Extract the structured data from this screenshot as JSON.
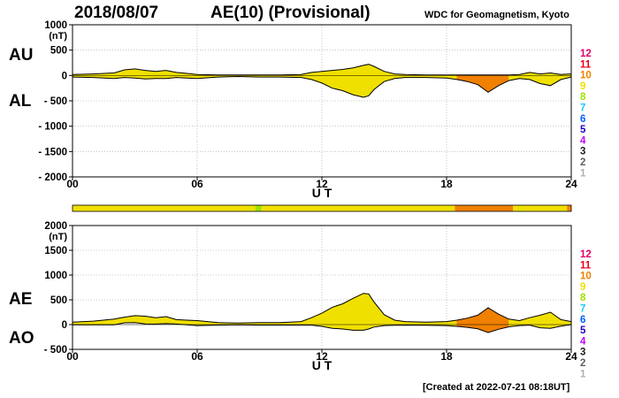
{
  "header": {
    "date": "2018/08/07",
    "title": "AE(10) (Provisional)",
    "source": "WDC for Geomagnetism, Kyoto"
  },
  "footer": {
    "created": "[Created at 2022-07-21 08:18UT]"
  },
  "level_colors": {
    "12": "#e0006a",
    "11": "#e8001e",
    "10": "#f08000",
    "9": "#f0e000",
    "8": "#a0e000",
    "7": "#20c8ff",
    "6": "#0060ff",
    "5": "#2000c0",
    "4": "#c000ff",
    "3": "#202020",
    "2": "#606060",
    "1": "#b0b0b0"
  },
  "level_labels": [
    "12",
    "11",
    "10",
    "9",
    "8",
    "7",
    "6",
    "5",
    "4",
    "3",
    "2",
    "1"
  ],
  "chart_data": [
    {
      "type": "area",
      "panel": "AU/AL",
      "labels": {
        "upper": "AU",
        "lower": "AL"
      },
      "ylabel": "(nT)",
      "xlabel": "U T",
      "ylim": [
        -2000,
        1000
      ],
      "yticks": [
        1000,
        500,
        0,
        -500,
        -1000,
        -1500,
        -2000
      ],
      "ytick_labels": [
        "1000",
        "500",
        "0",
        "- 500",
        "- 1000",
        "- 1500",
        "- 2000"
      ],
      "xlim": [
        0,
        24
      ],
      "xticks": [
        0,
        6,
        12,
        18,
        24
      ],
      "xtick_labels": [
        "00",
        "06",
        "12",
        "18",
        "24"
      ],
      "grid": true,
      "x": [
        0,
        1,
        2,
        2.5,
        3,
        3.5,
        4,
        4.5,
        5,
        5.5,
        6,
        7,
        8,
        9,
        10,
        11,
        11.5,
        12,
        12.5,
        13,
        13.5,
        14,
        14.25,
        14.5,
        15,
        15.5,
        16,
        17,
        18,
        18.5,
        19,
        19.5,
        20,
        20.5,
        21,
        21.5,
        22,
        22.5,
        23,
        23.5,
        24
      ],
      "series": [
        {
          "name": "AU",
          "values": [
            20,
            30,
            50,
            110,
            130,
            100,
            80,
            100,
            60,
            40,
            20,
            10,
            10,
            10,
            10,
            20,
            60,
            80,
            100,
            120,
            150,
            200,
            220,
            180,
            80,
            30,
            20,
            10,
            10,
            10,
            10,
            10,
            10,
            10,
            10,
            20,
            60,
            30,
            50,
            20,
            30
          ]
        },
        {
          "name": "AL",
          "values": [
            -30,
            -40,
            -60,
            -40,
            -50,
            -70,
            -60,
            -60,
            -40,
            -50,
            -60,
            -30,
            -20,
            -30,
            -30,
            -40,
            -80,
            -150,
            -250,
            -300,
            -380,
            -430,
            -400,
            -280,
            -120,
            -60,
            -40,
            -40,
            -50,
            -80,
            -120,
            -180,
            -330,
            -200,
            -100,
            -60,
            -80,
            -160,
            -200,
            -80,
            -30
          ]
        }
      ]
    },
    {
      "type": "area",
      "panel": "AE/AO",
      "labels": {
        "upper": "AE",
        "lower": "AO"
      },
      "ylabel": "(nT)",
      "xlabel": "U T",
      "ylim": [
        -500,
        2000
      ],
      "yticks": [
        2000,
        1500,
        1000,
        500,
        0,
        -500
      ],
      "ytick_labels": [
        "2000",
        "1500",
        "1000",
        "500",
        "0",
        "- 500"
      ],
      "xlim": [
        0,
        24
      ],
      "xticks": [
        0,
        6,
        12,
        18,
        24
      ],
      "xtick_labels": [
        "00",
        "06",
        "12",
        "18",
        "24"
      ],
      "grid": true,
      "x": [
        0,
        1,
        2,
        2.5,
        3,
        3.5,
        4,
        4.5,
        5,
        5.5,
        6,
        7,
        8,
        9,
        10,
        11,
        11.5,
        12,
        12.5,
        13,
        13.5,
        14,
        14.25,
        14.5,
        15,
        15.5,
        16,
        17,
        18,
        18.5,
        19,
        19.5,
        20,
        20.5,
        21,
        21.5,
        22,
        22.5,
        23,
        23.5,
        24
      ],
      "series": [
        {
          "name": "AE",
          "values": [
            50,
            70,
            110,
            150,
            180,
            170,
            140,
            160,
            100,
            90,
            80,
            40,
            30,
            40,
            40,
            60,
            140,
            230,
            350,
            420,
            530,
            630,
            620,
            460,
            200,
            90,
            60,
            50,
            60,
            90,
            130,
            190,
            340,
            210,
            110,
            80,
            140,
            190,
            250,
            100,
            60
          ]
        },
        {
          "name": "AO",
          "values": [
            -5,
            -5,
            -5,
            35,
            40,
            15,
            10,
            20,
            10,
            -5,
            -20,
            -10,
            -5,
            -10,
            -10,
            -10,
            -10,
            -35,
            -75,
            -90,
            -115,
            -115,
            -90,
            -50,
            -20,
            -15,
            -10,
            -15,
            -20,
            -35,
            -55,
            -85,
            -160,
            -95,
            -45,
            -20,
            -10,
            -65,
            -75,
            -30,
            0
          ]
        }
      ]
    },
    {
      "type": "bar",
      "panel": "activity-level strip",
      "xlim": [
        0,
        24
      ],
      "segments": [
        {
          "start": 0,
          "end": 8.8,
          "level": 9
        },
        {
          "start": 8.8,
          "end": 9.1,
          "level": 8
        },
        {
          "start": 9.1,
          "end": 9.3,
          "level": 9
        },
        {
          "start": 9.3,
          "end": 18.4,
          "level": 9
        },
        {
          "start": 18.4,
          "end": 21.2,
          "level": 10
        },
        {
          "start": 21.2,
          "end": 21.35,
          "level": 9
        },
        {
          "start": 21.35,
          "end": 23.8,
          "level": 9
        },
        {
          "start": 23.8,
          "end": 24,
          "level": 10
        }
      ]
    }
  ]
}
